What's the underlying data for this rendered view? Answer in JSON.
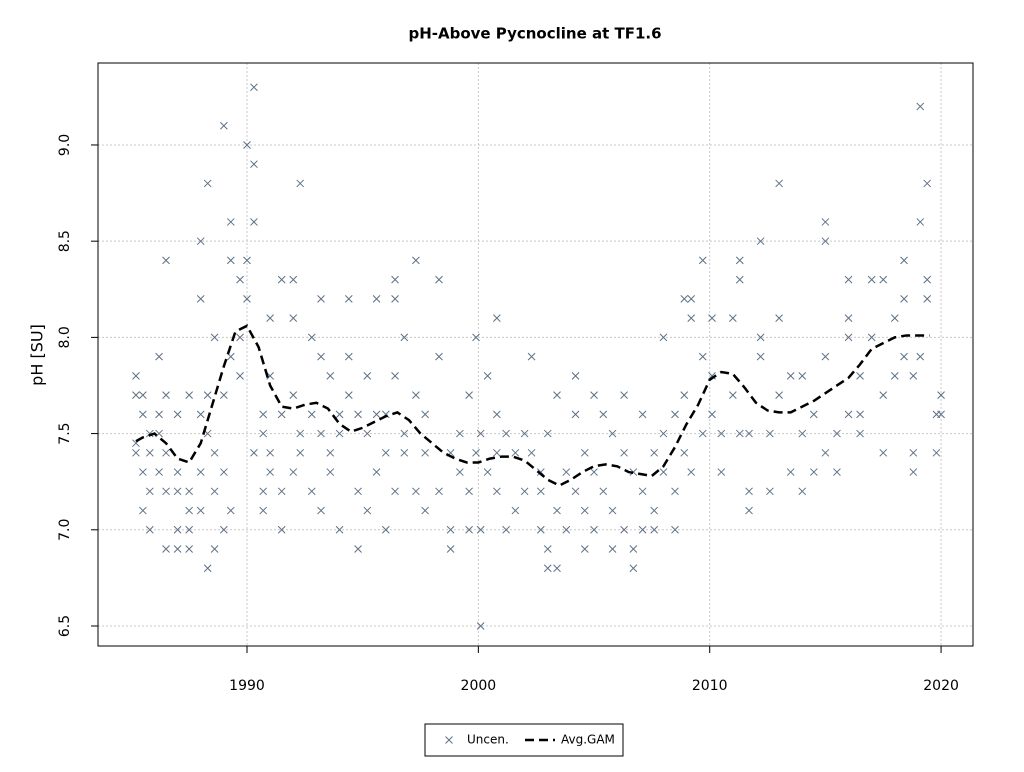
{
  "chart_data": {
    "type": "scatter-line",
    "title": "pH-Above Pycnocline at TF1.6",
    "ylabel": "pH [SU]",
    "xlim": [
      1983.56,
      2021.38
    ],
    "xticks": [
      1990,
      2000,
      2010,
      2020
    ],
    "ylim": [
      6.396,
      9.426
    ],
    "yticks": [
      6.5,
      {
        "value": 7,
        "label": "7.0"
      },
      7.5,
      {
        "value": 8,
        "label": "8.0"
      },
      8.5,
      {
        "value": 9,
        "label": "9.0"
      }
    ],
    "grid": true,
    "legend": "bottom",
    "series": [
      {
        "name": "Uncen.",
        "color": "#5f7186",
        "kind": "points",
        "x": [
          1985.2,
          1985.2,
          1985.2,
          1985.2,
          1985.5,
          1985.5,
          1985.5,
          1985.5,
          1985.8,
          1985.8,
          1985.8,
          1985.8,
          1986.2,
          1986.2,
          1986.2,
          1986.2,
          1986.5,
          1986.5,
          1986.5,
          1986.5,
          1986.5,
          1987.0,
          1987.0,
          1987.0,
          1987.0,
          1987.0,
          1987.5,
          1987.5,
          1987.5,
          1987.5,
          1987.5,
          1988.0,
          1988.0,
          1988.0,
          1988.0,
          1988.0,
          1988.3,
          1988.3,
          1988.3,
          1988.3,
          1988.6,
          1988.6,
          1988.6,
          1988.6,
          1989.0,
          1989.0,
          1989.0,
          1989.0,
          1989.3,
          1989.3,
          1989.3,
          1989.3,
          1989.7,
          1989.7,
          1989.7,
          1990.0,
          1990.0,
          1990.0,
          1990.3,
          1990.3,
          1990.3,
          1990.3,
          1990.7,
          1990.7,
          1990.7,
          1990.7,
          1991.0,
          1991.0,
          1991.0,
          1991.0,
          1991.5,
          1991.5,
          1991.5,
          1991.5,
          1992.0,
          1992.0,
          1992.0,
          1992.0,
          1992.3,
          1992.3,
          1992.3,
          1992.8,
          1992.8,
          1992.8,
          1993.2,
          1993.2,
          1993.2,
          1993.2,
          1993.6,
          1993.6,
          1993.6,
          1994.0,
          1994.0,
          1994.0,
          1994.4,
          1994.4,
          1994.4,
          1994.8,
          1994.8,
          1994.8,
          1995.2,
          1995.2,
          1995.2,
          1995.6,
          1995.6,
          1995.6,
          1996.0,
          1996.0,
          1996.0,
          1996.4,
          1996.4,
          1996.4,
          1996.4,
          1996.8,
          1996.8,
          1996.8,
          1997.3,
          1997.3,
          1997.3,
          1997.7,
          1997.7,
          1997.7,
          1998.3,
          1998.3,
          1998.3,
          1998.8,
          1998.8,
          1998.8,
          1999.2,
          1999.2,
          1999.6,
          1999.6,
          1999.6,
          1999.9,
          1999.9,
          2000.1,
          2000.1,
          2000.1,
          2000.4,
          2000.4,
          2000.8,
          2000.8,
          2000.8,
          2000.8,
          2001.2,
          2001.2,
          2001.6,
          2001.6,
          2002.0,
          2002.0,
          2002.3,
          2002.3,
          2002.7,
          2002.7,
          2002.7,
          2003.0,
          2003.0,
          2003.0,
          2003.4,
          2003.4,
          2003.4,
          2003.8,
          2003.8,
          2004.2,
          2004.2,
          2004.2,
          2004.6,
          2004.6,
          2004.6,
          2005.0,
          2005.0,
          2005.0,
          2005.4,
          2005.4,
          2005.8,
          2005.8,
          2005.8,
          2006.3,
          2006.3,
          2006.3,
          2006.7,
          2006.7,
          2006.7,
          2007.1,
          2007.1,
          2007.1,
          2007.6,
          2007.6,
          2007.6,
          2008.0,
          2008.0,
          2008.0,
          2008.5,
          2008.5,
          2008.5,
          2008.9,
          2008.9,
          2008.9,
          2009.2,
          2009.2,
          2009.2,
          2009.7,
          2009.7,
          2009.7,
          2010.1,
          2010.1,
          2010.1,
          2010.5,
          2010.5,
          2011.0,
          2011.0,
          2011.3,
          2011.3,
          2011.3,
          2011.7,
          2011.7,
          2011.7,
          2012.2,
          2012.2,
          2012.2,
          2012.6,
          2012.6,
          2013.0,
          2013.0,
          2013.0,
          2013.5,
          2013.5,
          2014.0,
          2014.0,
          2014.0,
          2014.5,
          2014.5,
          2015.0,
          2015.0,
          2015.0,
          2015.0,
          2015.5,
          2015.5,
          2016.0,
          2016.0,
          2016.0,
          2016.0,
          2016.5,
          2016.5,
          2016.5,
          2017.0,
          2017.0,
          2017.5,
          2017.5,
          2017.5,
          2018.0,
          2018.0,
          2018.4,
          2018.4,
          2018.4,
          2018.8,
          2018.8,
          2018.8,
          2019.1,
          2019.1,
          2019.1,
          2019.4,
          2019.4,
          2019.4,
          2019.8,
          2019.8,
          2020.0,
          2020.0
        ],
        "values": [
          7.8,
          7.7,
          7.4,
          7.45,
          7.3,
          7.1,
          7.6,
          7.7,
          7.0,
          7.4,
          7.5,
          7.2,
          7.9,
          7.6,
          7.3,
          7.5,
          8.4,
          7.7,
          7.2,
          7.4,
          6.9,
          7.6,
          7.3,
          7.2,
          7.0,
          6.9,
          7.7,
          7.1,
          7.0,
          6.9,
          7.2,
          8.2,
          8.5,
          7.6,
          7.3,
          7.1,
          8.8,
          6.8,
          7.7,
          7.5,
          8.0,
          7.4,
          6.9,
          7.2,
          9.1,
          7.7,
          7.3,
          7.0,
          8.6,
          8.4,
          7.9,
          7.1,
          8.3,
          8.0,
          7.8,
          9.0,
          8.4,
          8.2,
          9.3,
          8.6,
          8.9,
          7.4,
          7.6,
          7.5,
          7.2,
          7.1,
          8.1,
          7.8,
          7.4,
          7.3,
          8.3,
          7.6,
          7.0,
          7.2,
          8.3,
          8.1,
          7.7,
          7.3,
          8.8,
          7.5,
          7.4,
          8.0,
          7.6,
          7.2,
          8.2,
          7.9,
          7.5,
          7.1,
          7.8,
          7.4,
          7.3,
          7.5,
          7.0,
          7.6,
          8.2,
          7.9,
          7.7,
          7.6,
          6.9,
          7.2,
          7.8,
          7.5,
          7.1,
          8.2,
          7.6,
          7.3,
          7.4,
          7.0,
          7.6,
          8.2,
          8.3,
          7.8,
          7.2,
          8.0,
          7.5,
          7.4,
          8.4,
          7.7,
          7.2,
          7.6,
          7.1,
          7.4,
          8.3,
          7.9,
          7.2,
          7.4,
          7.0,
          6.9,
          7.5,
          7.3,
          7.7,
          7.2,
          7.0,
          8.0,
          7.4,
          6.5,
          7.5,
          7.0,
          7.8,
          7.3,
          8.1,
          7.6,
          7.4,
          7.2,
          7.5,
          7.0,
          7.4,
          7.1,
          7.5,
          7.2,
          7.9,
          7.4,
          7.3,
          7.2,
          7.0,
          7.5,
          6.9,
          6.8,
          7.7,
          7.1,
          6.8,
          7.3,
          7.0,
          7.8,
          7.6,
          7.2,
          7.4,
          7.1,
          6.9,
          7.7,
          7.3,
          7.0,
          7.6,
          7.2,
          7.5,
          7.1,
          6.9,
          7.7,
          7.4,
          7.0,
          6.8,
          7.3,
          6.9,
          7.6,
          7.2,
          7.0,
          7.4,
          7.1,
          7.0,
          8.0,
          7.5,
          7.3,
          7.6,
          7.2,
          7.0,
          8.2,
          7.7,
          7.4,
          8.1,
          8.2,
          7.3,
          8.4,
          7.9,
          7.5,
          8.1,
          7.8,
          7.6,
          7.5,
          7.3,
          8.1,
          7.7,
          8.4,
          8.3,
          7.5,
          7.2,
          7.1,
          7.5,
          8.5,
          8.0,
          7.9,
          7.5,
          7.2,
          8.8,
          8.1,
          7.7,
          7.8,
          7.3,
          7.8,
          7.2,
          7.5,
          7.6,
          7.3,
          8.5,
          8.6,
          7.9,
          7.4,
          7.5,
          7.3,
          8.1,
          8.3,
          8.0,
          7.6,
          7.8,
          7.6,
          7.5,
          8.3,
          8.0,
          8.3,
          7.7,
          7.4,
          8.1,
          7.8,
          8.4,
          8.2,
          7.9,
          7.8,
          7.3,
          7.4,
          9.2,
          8.6,
          7.9,
          8.8,
          8.3,
          8.2,
          7.6,
          7.4,
          7.7,
          7.6
        ]
      },
      {
        "name": "Avg.GAM",
        "color": "#000000",
        "kind": "dashed-line",
        "x": [
          1985.2,
          1985.5,
          1986.0,
          1986.5,
          1987.0,
          1987.5,
          1988.0,
          1988.5,
          1989.0,
          1989.5,
          1990.0,
          1990.5,
          1991.0,
          1991.5,
          1992.0,
          1992.5,
          1993.0,
          1993.5,
          1994.0,
          1994.5,
          1995.0,
          1995.5,
          1996.0,
          1996.5,
          1997.0,
          1997.5,
          1998.0,
          1998.5,
          1999.0,
          1999.5,
          2000.0,
          2000.5,
          2001.0,
          2001.5,
          2002.0,
          2002.5,
          2003.0,
          2003.5,
          2004.0,
          2004.5,
          2005.0,
          2005.5,
          2006.0,
          2006.5,
          2007.0,
          2007.5,
          2008.0,
          2008.5,
          2009.0,
          2009.5,
          2010.0,
          2010.5,
          2011.0,
          2011.5,
          2012.0,
          2012.5,
          2013.0,
          2013.5,
          2014.0,
          2014.5,
          2015.0,
          2015.5,
          2016.0,
          2016.5,
          2017.0,
          2017.5,
          2018.0,
          2018.5,
          2019.0,
          2019.5
        ],
        "values": [
          7.46,
          7.48,
          7.5,
          7.45,
          7.37,
          7.35,
          7.45,
          7.65,
          7.85,
          8.03,
          8.06,
          7.95,
          7.75,
          7.64,
          7.63,
          7.65,
          7.66,
          7.63,
          7.55,
          7.51,
          7.53,
          7.56,
          7.59,
          7.61,
          7.57,
          7.5,
          7.45,
          7.4,
          7.37,
          7.35,
          7.35,
          7.37,
          7.38,
          7.38,
          7.36,
          7.31,
          7.26,
          7.23,
          7.26,
          7.3,
          7.33,
          7.34,
          7.33,
          7.3,
          7.29,
          7.28,
          7.33,
          7.43,
          7.55,
          7.65,
          7.78,
          7.82,
          7.81,
          7.74,
          7.66,
          7.62,
          7.61,
          7.61,
          7.64,
          7.67,
          7.71,
          7.75,
          7.79,
          7.86,
          7.94,
          7.97,
          8.0,
          8.01,
          8.01,
          8.01
        ]
      }
    ]
  }
}
